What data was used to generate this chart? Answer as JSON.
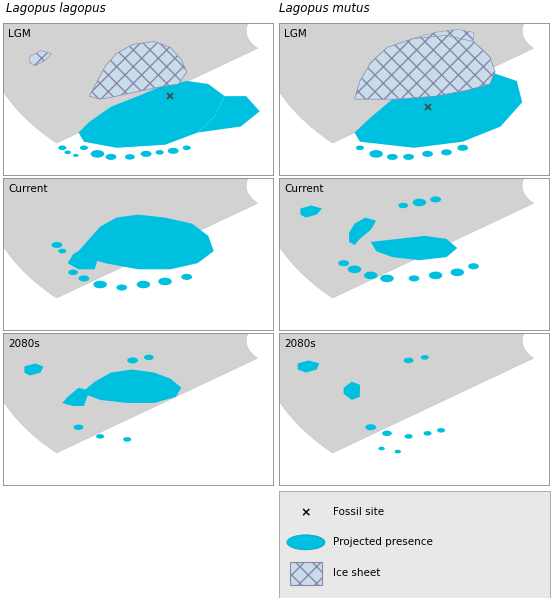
{
  "title_left": "Lagopus lagopus",
  "title_right": "Lagopus mutus",
  "row_labels": [
    "LGM",
    "Current",
    "2080s"
  ],
  "land_color": "#d2d2d2",
  "sea_color": "#ffffff",
  "presence_color": "#00c0e0",
  "ice_facecolor": "#c8dcea",
  "ice_edgecolor": "#8888aa",
  "legend_bg": "#e8e8e8",
  "panel_border_color": "#888888",
  "title_fontsize": 8.5,
  "label_fontsize": 7.5,
  "legend_fontsize": 7.5
}
